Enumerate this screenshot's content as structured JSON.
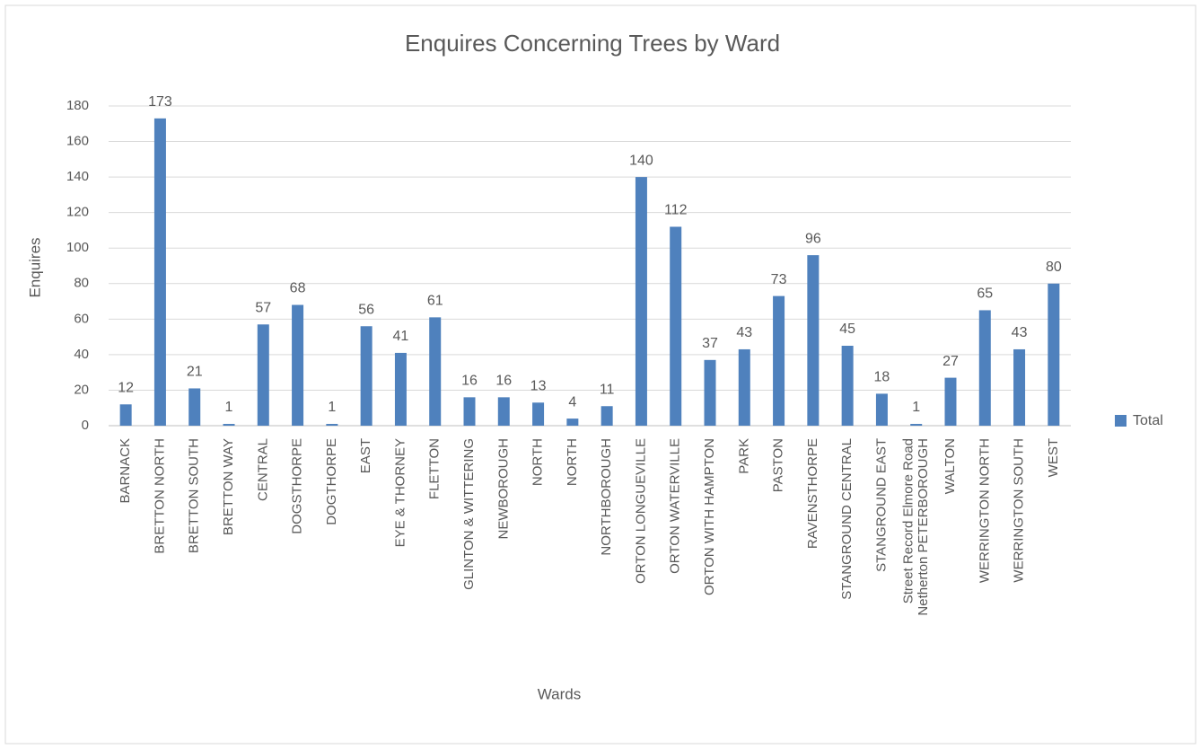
{
  "chart_data": {
    "type": "bar",
    "title": "Enquires Concerning Trees by Ward",
    "x_label": "Wards",
    "y_label": "Enquires",
    "categories": [
      "BARNACK",
      "BRETTON NORTH",
      "BRETTON SOUTH",
      "BRETTON WAY",
      "CENTRAL",
      "DOGSTHORPE",
      "DOGTHORPE",
      "EAST",
      "EYE & THORNEY",
      "FLETTON",
      "GLINTON & WITTERING",
      "NEWBOROUGH",
      "NORTH",
      "NORTH",
      "NORTHBOROUGH",
      "ORTON LONGUEVILLE",
      "ORTON WATERVILLE",
      "ORTON WITH HAMPTON",
      "PARK",
      "PASTON",
      "RAVENSTHORPE",
      "STANGROUND CENTRAL",
      "STANGROUND EAST",
      "Street Record Elmore Road Netherton PETERBOROUGH",
      "WALTON",
      "WERRINGTON NORTH",
      "WERRINGTON SOUTH",
      "WEST"
    ],
    "series": [
      {
        "name": "Total",
        "color": "#4f81bd",
        "values": [
          12,
          173,
          21,
          1,
          57,
          68,
          1,
          56,
          41,
          61,
          16,
          16,
          13,
          4,
          11,
          140,
          112,
          37,
          43,
          73,
          96,
          45,
          18,
          1,
          27,
          65,
          43,
          80
        ]
      }
    ],
    "ylim": [
      0,
      180
    ],
    "yticks": [
      0,
      20,
      40,
      60,
      80,
      100,
      120,
      140,
      160,
      180
    ],
    "grid": true,
    "legend": "right"
  }
}
